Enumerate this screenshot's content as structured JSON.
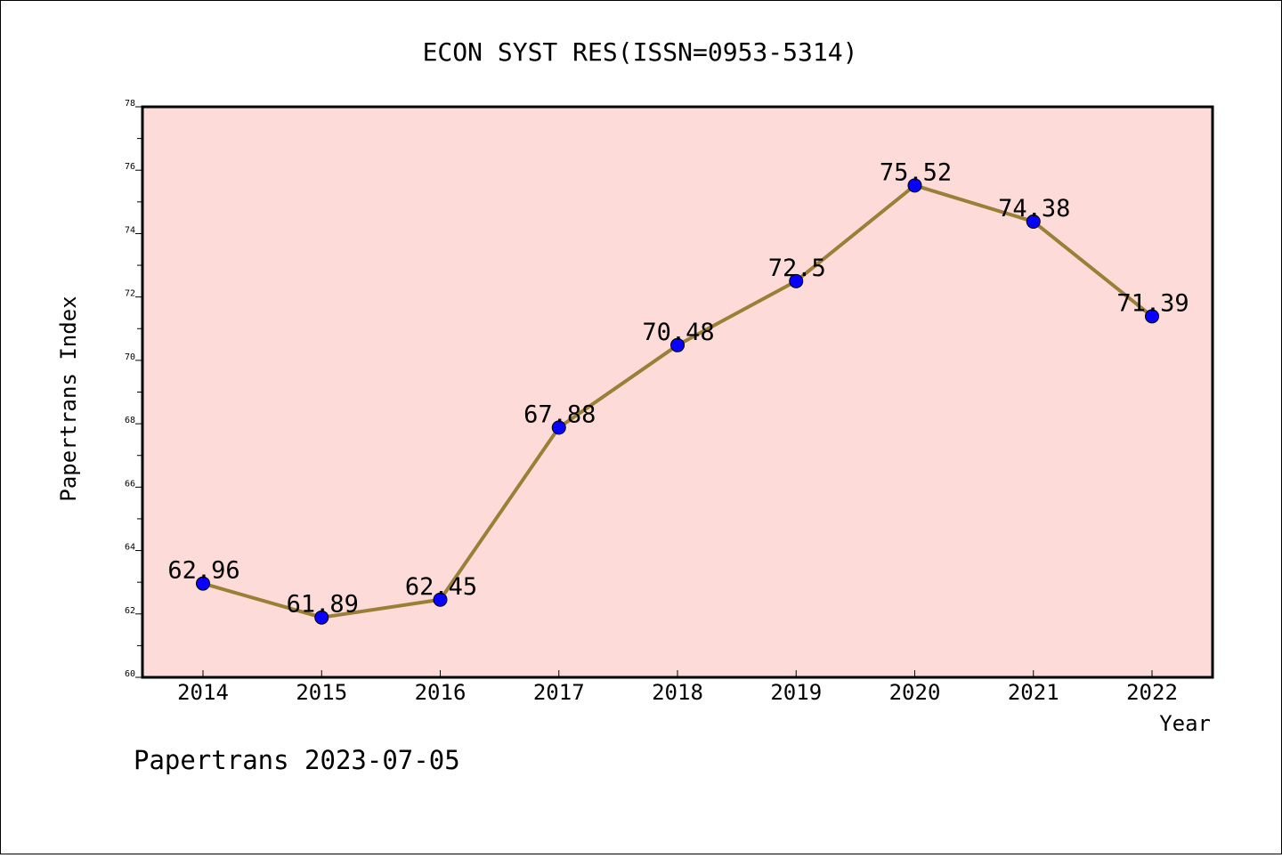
{
  "chart_data": {
    "type": "line",
    "title": "ECON SYST RES(ISSN=0953-5314)",
    "xlabel": "Year",
    "ylabel": "Papertrans Index",
    "categories": [
      "2014",
      "2015",
      "2016",
      "2017",
      "2018",
      "2019",
      "2020",
      "2021",
      "2022"
    ],
    "values": [
      62.96,
      61.89,
      62.45,
      67.88,
      70.48,
      72.5,
      75.52,
      74.38,
      71.39
    ],
    "data_labels": [
      "62.96",
      "61.89",
      "62.45",
      "67.88",
      "70.48",
      "72.5",
      "75.52",
      "74.38",
      "71.39"
    ],
    "ylim": [
      60,
      78
    ],
    "yticks": [
      "60",
      "62",
      "64",
      "66",
      "68",
      "70",
      "72",
      "74",
      "76",
      "78"
    ],
    "grid": false,
    "colors": {
      "plot_background": "#fddbd8",
      "line": "#9a8037",
      "marker": "#0a00ff"
    }
  },
  "footer": "Papertrans 2023-07-05"
}
